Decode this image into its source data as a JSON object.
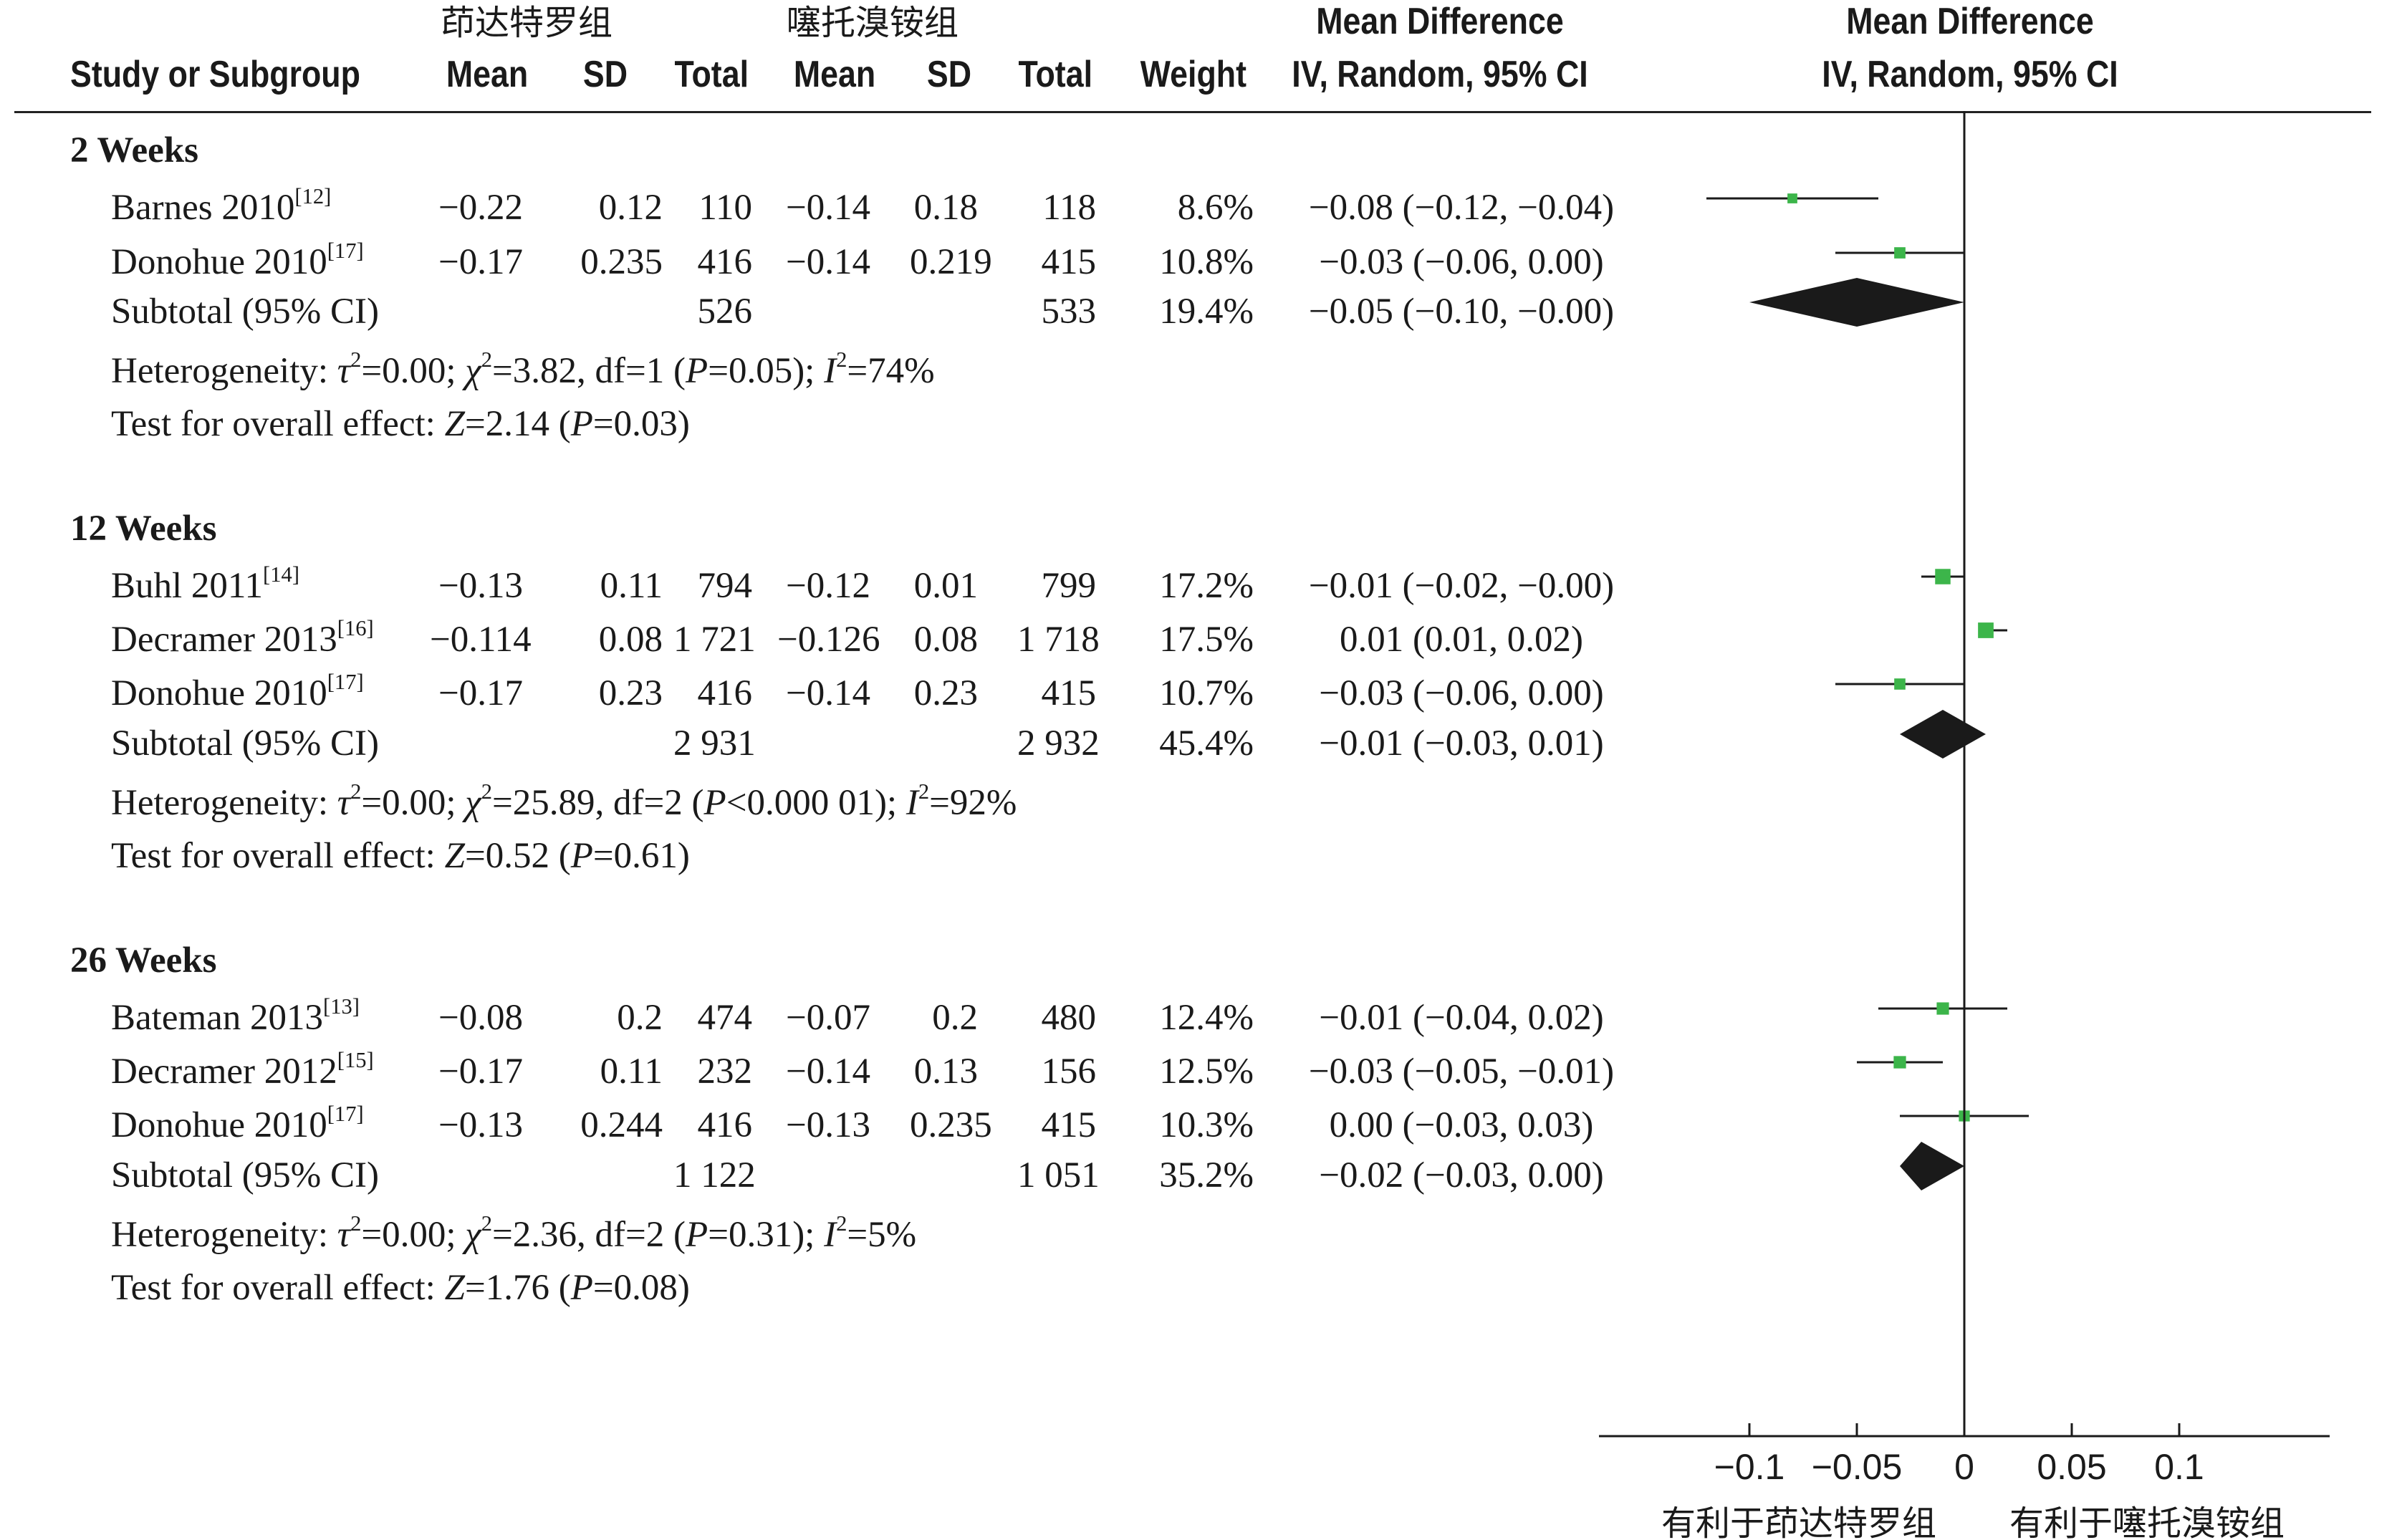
{
  "chart_data": {
    "type": "forest",
    "headers": {
      "study": "Study or Subgroup",
      "exp_group": "茚达特罗组",
      "ctrl_group": "噻托溴铵组",
      "mean": "Mean",
      "sd": "SD",
      "total": "Total",
      "weight": "Weight",
      "effect_title": "Mean Difference",
      "effect_sub": "IV, Random, 95% CI",
      "plot_title": "Mean Difference",
      "plot_sub": "IV, Random, 95% CI"
    },
    "groups": [
      {
        "name": "2 Weeks",
        "studies": [
          {
            "name": "Barnes 2010",
            "ref": "[12]",
            "m1": "−0.22",
            "sd1": "0.12",
            "n1": "110",
            "m2": "−0.14",
            "sd2": "0.18",
            "n2": "118",
            "weight": "8.6%",
            "ci_text": "−0.08 (−0.12, −0.04)",
            "md": -0.08,
            "lo": -0.12,
            "hi": -0.04,
            "w": 8.6
          },
          {
            "name": "Donohue  2010",
            "ref": "[17]",
            "m1": "−0.17",
            "sd1": "0.235",
            "n1": "416",
            "m2": "−0.14",
            "sd2": "0.219",
            "n2": "415",
            "weight": "10.8%",
            "ci_text": "−0.03 (−0.06, 0.00)",
            "md": -0.03,
            "lo": -0.06,
            "hi": 0.0,
            "w": 10.8
          }
        ],
        "subtotal": {
          "label": "Subtotal (95% CI)",
          "n1": "526",
          "n2": "533",
          "weight": "19.4%",
          "ci_text": "−0.05 (−0.10, −0.00)",
          "md": -0.05,
          "lo": -0.1,
          "hi": -0.0
        },
        "heterogeneity": "Heterogeneity: τ²=0.00; χ²=3.82, df=1 (P=0.05); I²=74%",
        "overall": "Test for overall effect: Z=2.14 (P=0.03)"
      },
      {
        "name": "12 Weeks",
        "studies": [
          {
            "name": "Buhl 2011",
            "ref": "[14]",
            "m1": "−0.13",
            "sd1": "0.11",
            "n1": "794",
            "m2": "−0.12",
            "sd2": "0.01",
            "n2": "799",
            "weight": "17.2%",
            "ci_text": "−0.01 (−0.02, −0.00)",
            "md": -0.01,
            "lo": -0.02,
            "hi": -0.0,
            "w": 17.2
          },
          {
            "name": "Decramer 2013",
            "ref": "[16]",
            "m1": "−0.114",
            "sd1": "0.08",
            "n1": "1 721",
            "m2": "−0.126",
            "sd2": "0.08",
            "n2": "1 718",
            "weight": "17.5%",
            "ci_text": "0.01 (0.01, 0.02)",
            "md": 0.01,
            "lo": 0.01,
            "hi": 0.02,
            "w": 17.5
          },
          {
            "name": "Donohue  2010",
            "ref": "[17]",
            "m1": "−0.17",
            "sd1": "0.23",
            "n1": "416",
            "m2": "−0.14",
            "sd2": "0.23",
            "n2": "415",
            "weight": "10.7%",
            "ci_text": "−0.03 (−0.06, 0.00)",
            "md": -0.03,
            "lo": -0.06,
            "hi": 0.0,
            "w": 10.7
          }
        ],
        "subtotal": {
          "label": "Subtotal (95% CI)",
          "n1": "2 931",
          "n2": "2 932",
          "weight": "45.4%",
          "ci_text": "−0.01 (−0.03, 0.01)",
          "md": -0.01,
          "lo": -0.03,
          "hi": 0.01
        },
        "heterogeneity": "Heterogeneity: τ²=0.00; χ²=25.89, df=2 (P<0.000 01); I²=92%",
        "overall": "Test for overall effect: Z=0.52 (P=0.61)"
      },
      {
        "name": "26 Weeks",
        "studies": [
          {
            "name": "Bateman  2013",
            "ref": "[13]",
            "m1": "−0.08",
            "sd1": "0.2",
            "n1": "474",
            "m2": "−0.07",
            "sd2": "0.2",
            "n2": "480",
            "weight": "12.4%",
            "ci_text": "−0.01 (−0.04, 0.02)",
            "md": -0.01,
            "lo": -0.04,
            "hi": 0.02,
            "w": 12.4
          },
          {
            "name": "Decramer 2012",
            "ref": "[15]",
            "m1": "−0.17",
            "sd1": "0.11",
            "n1": "232",
            "m2": "−0.14",
            "sd2": "0.13",
            "n2": "156",
            "weight": "12.5%",
            "ci_text": "−0.03 (−0.05, −0.01)",
            "md": -0.03,
            "lo": -0.05,
            "hi": -0.01,
            "w": 12.5
          },
          {
            "name": "Donohue  2010",
            "ref": "[17]",
            "m1": "−0.13",
            "sd1": "0.244",
            "n1": "416",
            "m2": "−0.13",
            "sd2": "0.235",
            "n2": "415",
            "weight": "10.3%",
            "ci_text": "0.00 (−0.03, 0.03)",
            "md": 0.0,
            "lo": -0.03,
            "hi": 0.03,
            "w": 10.3
          }
        ],
        "subtotal": {
          "label": "Subtotal (95% CI)",
          "n1": "1 122",
          "n2": "1 051",
          "weight": "35.2%",
          "ci_text": "−0.02 (−0.03, 0.00)",
          "md": -0.02,
          "lo": -0.03,
          "hi": 0.0
        },
        "heterogeneity": "Heterogeneity: τ²=0.00; χ²=2.36, df=2 (P=0.31); I²=5%",
        "overall": "Test for overall effect: Z=1.76 (P=0.08)"
      }
    ],
    "axis": {
      "ticks": [
        -0.1,
        -0.05,
        0,
        0.05,
        0.1
      ],
      "tick_labels": [
        "−0.1",
        "−0.05",
        "0",
        "0.05",
        "0.1"
      ],
      "xlim": [
        -0.17,
        0.17
      ],
      "left_label": "有利于茚达特罗组",
      "right_label": "有利于噻托溴铵组"
    },
    "colors": {
      "study_marker": "#3cb54a",
      "diamond": "#1a1a1a",
      "line": "#1a1a1a"
    }
  }
}
